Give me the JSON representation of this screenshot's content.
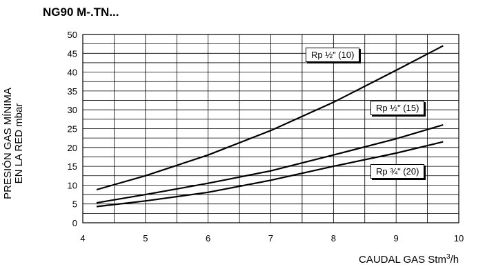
{
  "title": "NG90 M-.TN...",
  "ylabel_line1": "PRESIÓN GAS MÍNIMA",
  "ylabel_line2": "EN LA RED mbar",
  "xlabel_main": "CAUDAL GAS Stm",
  "xlabel_sup": "3",
  "xlabel_tail": "/h",
  "chart_data": {
    "type": "line",
    "title": "NG90 M-.TN...",
    "xlabel": "CAUDAL GAS Stm3/h",
    "ylabel": "PRESIÓN GAS MÍNIMA EN LA RED mbar",
    "xlim": [
      4,
      10
    ],
    "ylim": [
      0,
      50
    ],
    "x_ticks": [
      4,
      5,
      6,
      7,
      8,
      9,
      10
    ],
    "y_ticks": [
      0,
      5,
      10,
      15,
      20,
      25,
      30,
      35,
      40,
      45,
      50
    ],
    "x_minor_step": 0.5,
    "y_minor_step": 2.5,
    "grid": true,
    "series": [
      {
        "name": "Rp ½\" (10)",
        "x": [
          4.22,
          5,
          6,
          7,
          8,
          9,
          9.75
        ],
        "y": [
          8.8,
          12.5,
          18,
          24.5,
          32,
          40.5,
          47
        ]
      },
      {
        "name": "Rp ½\" (15)",
        "x": [
          4.22,
          5,
          6,
          7,
          8,
          9,
          9.75
        ],
        "y": [
          5.3,
          7.5,
          10.5,
          13.8,
          18,
          22.3,
          26
        ]
      },
      {
        "name": "Rp ¾\" (20)",
        "x": [
          4.22,
          5,
          6,
          7,
          8,
          9,
          9.75
        ],
        "y": [
          4.3,
          5.8,
          8.1,
          11.3,
          15,
          18.5,
          21.5
        ]
      }
    ]
  }
}
